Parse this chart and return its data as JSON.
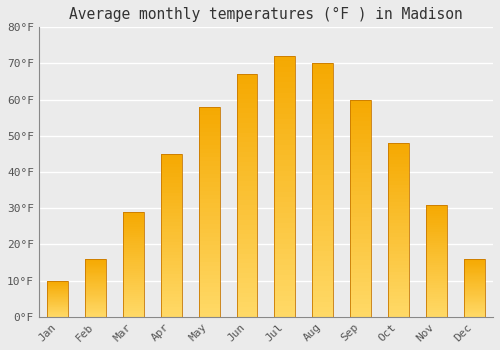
{
  "title": "Average monthly temperatures (°F ) in Madison",
  "months": [
    "Jan",
    "Feb",
    "Mar",
    "Apr",
    "May",
    "Jun",
    "Jul",
    "Aug",
    "Sep",
    "Oct",
    "Nov",
    "Dec"
  ],
  "values": [
    10,
    16,
    29,
    45,
    58,
    67,
    72,
    70,
    60,
    48,
    31,
    16
  ],
  "bar_color_top": "#F5A800",
  "bar_color_bottom": "#FFD966",
  "bar_border_color": "#C87800",
  "ylim": [
    0,
    80
  ],
  "yticks": [
    0,
    10,
    20,
    30,
    40,
    50,
    60,
    70,
    80
  ],
  "ytick_labels": [
    "0°F",
    "10°F",
    "20°F",
    "30°F",
    "40°F",
    "50°F",
    "60°F",
    "70°F",
    "80°F"
  ],
  "background_color": "#ebebeb",
  "grid_color": "#ffffff",
  "title_fontsize": 10.5,
  "tick_fontsize": 8,
  "bar_width": 0.55
}
